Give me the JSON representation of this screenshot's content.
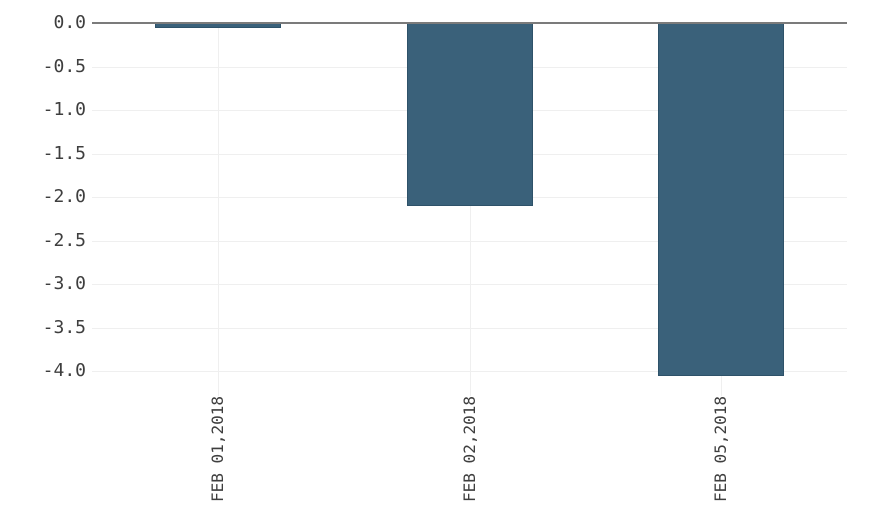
{
  "chart_data": {
    "type": "bar",
    "categories": [
      "FEB 01,2018",
      "FEB 02,2018",
      "FEB 05,2018"
    ],
    "values": [
      -0.06,
      -2.1,
      -4.06
    ],
    "title": "",
    "xlabel": "",
    "ylabel": "",
    "ylim": [
      -4.2,
      0
    ],
    "yticks": [
      0.0,
      -0.5,
      -1.0,
      -1.5,
      -2.0,
      -2.5,
      -3.0,
      -3.5,
      -4.0
    ],
    "ytick_labels": [
      "0.0",
      "-0.5",
      "-1.0",
      "-1.5",
      "-2.0",
      "-2.5",
      "-3.0",
      "-3.5",
      "-4.0"
    ],
    "grid": true,
    "legend": false,
    "colors": {
      "bar_fill": "#3a617a",
      "bar_border": "#2e5269",
      "zero_line": "#7b7b7b",
      "gridline": "#efefef",
      "tick_label": "#3e3e3e",
      "background": "#ffffff"
    }
  }
}
